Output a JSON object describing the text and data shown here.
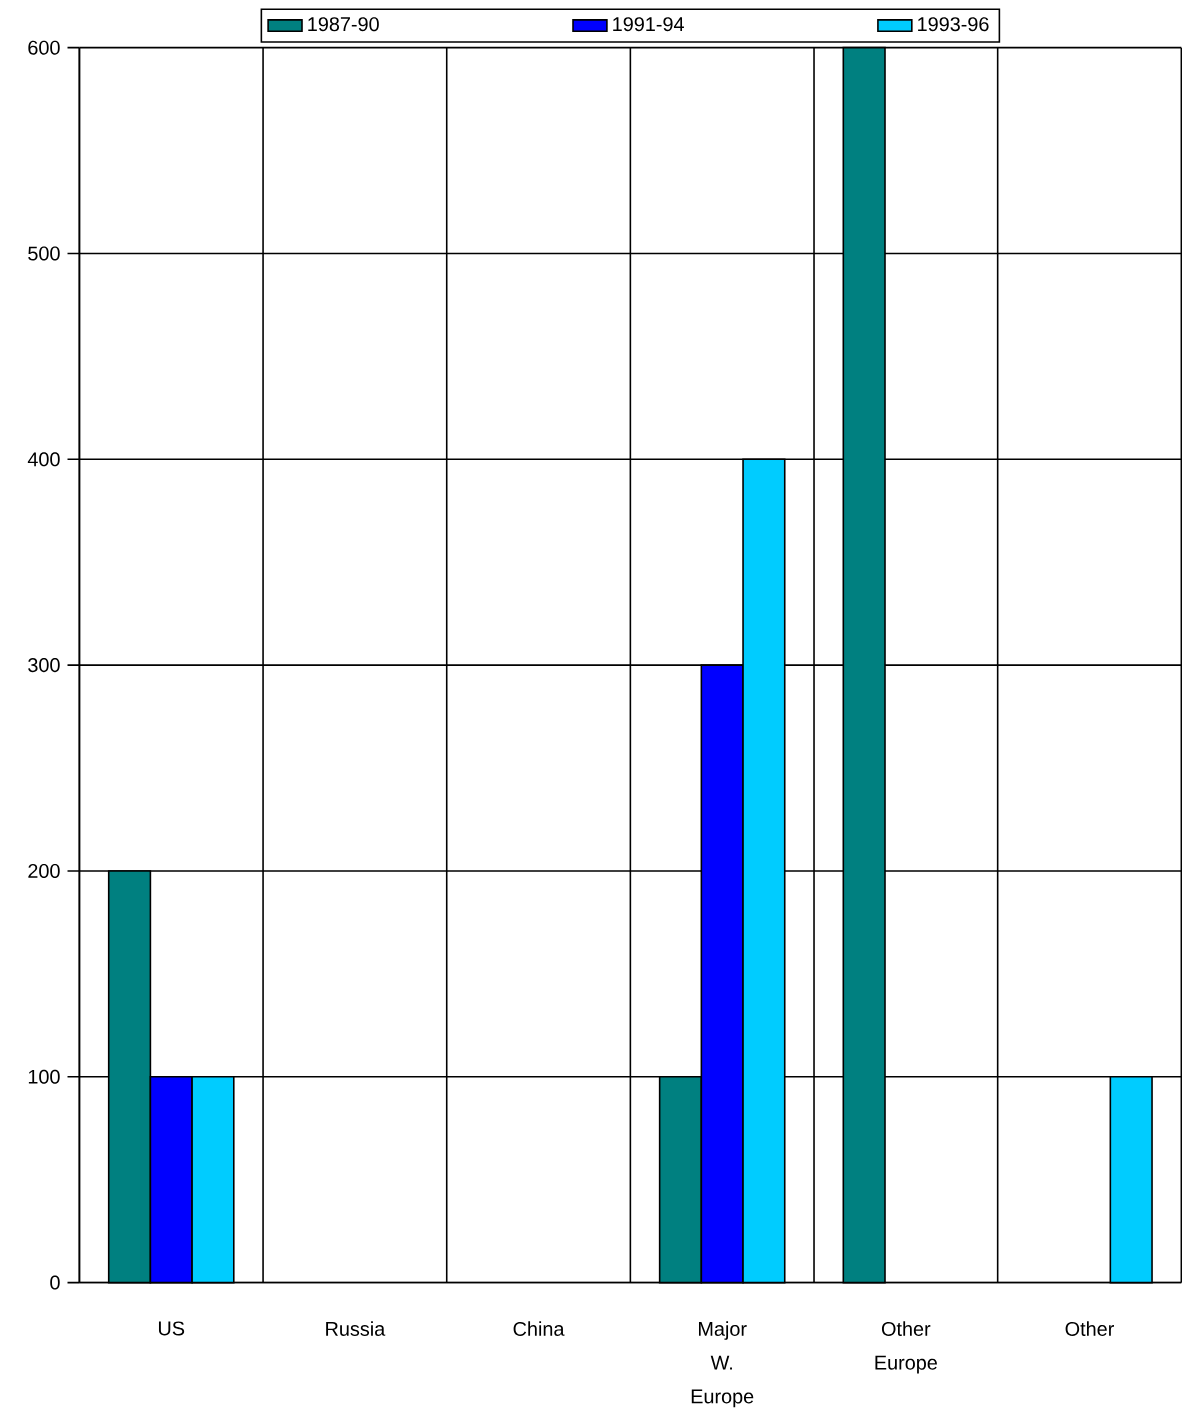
{
  "chart_data": {
    "type": "bar",
    "categories": [
      "US",
      "Russia",
      "China",
      "Major W. Europe",
      "Other Europe",
      "Other"
    ],
    "series": [
      {
        "name": "1987-90",
        "color": "#008080",
        "values": [
          200,
          null,
          null,
          100,
          600,
          null
        ]
      },
      {
        "name": "1991-94",
        "color": "#0000ff",
        "values": [
          100,
          null,
          null,
          300,
          null,
          null
        ]
      },
      {
        "name": "1993-96",
        "color": "#00ccff",
        "values": [
          100,
          null,
          null,
          400,
          null,
          100
        ]
      }
    ],
    "ylim": [
      0,
      600
    ],
    "yticks": [
      0,
      100,
      200,
      300,
      400,
      500,
      600
    ],
    "grid": true,
    "legend": "top"
  }
}
